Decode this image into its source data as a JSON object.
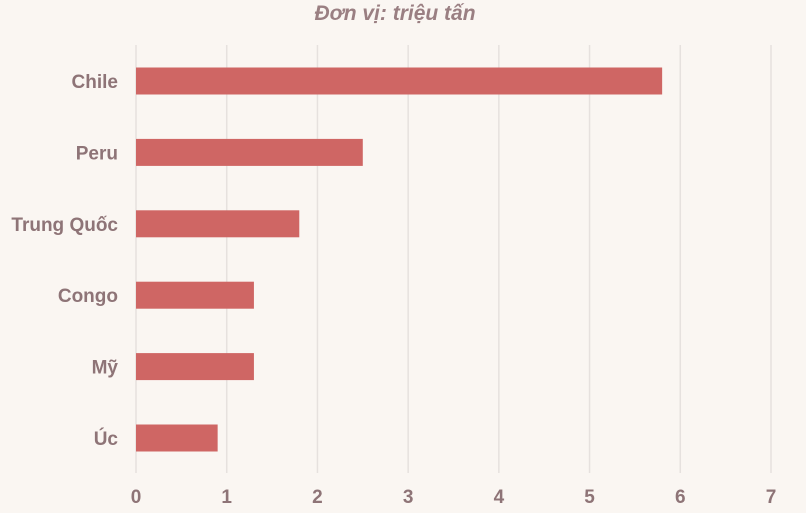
{
  "chart_data": {
    "type": "bar",
    "orientation": "horizontal",
    "title": "Đơn vị: triệu tấn",
    "categories": [
      "Chile",
      "Peru",
      "Trung Quốc",
      "Congo",
      "Mỹ",
      "Úc"
    ],
    "values": [
      5.8,
      2.5,
      1.8,
      1.3,
      1.3,
      0.9
    ],
    "x_ticks": [
      "0",
      "1",
      "2",
      "3",
      "4",
      "5",
      "6",
      "7"
    ],
    "xlim": [
      0,
      7
    ],
    "grid": true,
    "colors": {
      "bar": "#cf6664",
      "background": "#faf6f2",
      "text": "#8e7477",
      "grid": "#e6e1de"
    }
  }
}
